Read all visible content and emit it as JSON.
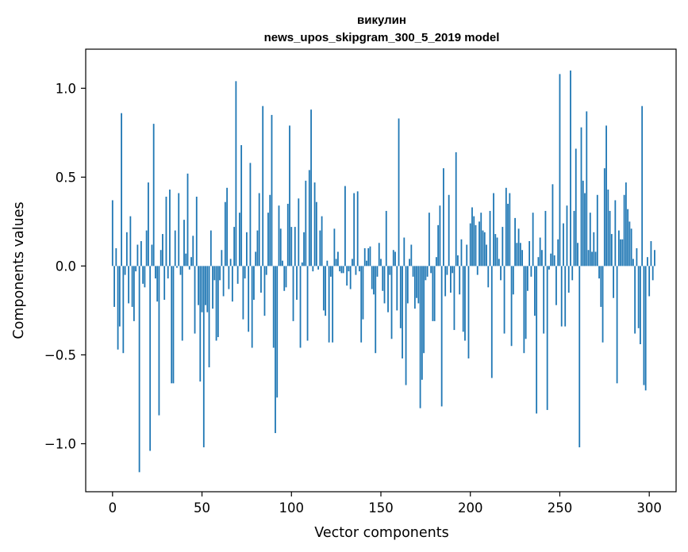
{
  "chart_data": {
    "type": "bar",
    "title": "викулин",
    "subtitle": "news_upos_skipgram_300_5_2019 model",
    "xlabel": "Vector components",
    "ylabel": "Components values",
    "xlim": [
      -15,
      315
    ],
    "ylim": [
      -1.27,
      1.22
    ],
    "xticks": [
      0,
      50,
      100,
      150,
      200,
      250,
      300
    ],
    "xtick_labels": [
      "0",
      "50",
      "100",
      "150",
      "200",
      "250",
      "300"
    ],
    "yticks": [
      -1.0,
      -0.5,
      0.0,
      0.5,
      1.0
    ],
    "ytick_labels": [
      "−1.0",
      "−0.5",
      "0.0",
      "0.5",
      "1.0"
    ],
    "bar_color": "#1f77b4",
    "grid": false,
    "legend": "none",
    "values": [
      0.37,
      -0.23,
      0.1,
      -0.47,
      -0.34,
      0.86,
      -0.49,
      -0.05,
      0.19,
      -0.21,
      0.28,
      -0.23,
      -0.31,
      -0.03,
      0.12,
      -1.16,
      0.14,
      -0.1,
      -0.12,
      0.2,
      0.47,
      -1.04,
      0.12,
      0.8,
      -0.07,
      -0.2,
      -0.84,
      0.09,
      0.18,
      -0.19,
      0.39,
      -0.07,
      0.43,
      -0.66,
      -0.66,
      0.2,
      -0.01,
      0.41,
      -0.05,
      -0.42,
      0.26,
      0.07,
      0.52,
      -0.02,
      0.05,
      0.17,
      -0.38,
      0.39,
      -0.22,
      -0.65,
      -0.26,
      -1.02,
      -0.22,
      -0.26,
      -0.57,
      0.2,
      -0.24,
      -0.08,
      -0.42,
      -0.4,
      -0.08,
      0.09,
      -0.17,
      0.36,
      0.44,
      -0.13,
      0.04,
      -0.2,
      0.22,
      1.04,
      -0.1,
      0.3,
      0.68,
      -0.3,
      -0.07,
      0.19,
      -0.37,
      0.58,
      -0.46,
      -0.19,
      0.08,
      0.2,
      0.41,
      -0.15,
      0.9,
      -0.28,
      -0.05,
      0.3,
      0.4,
      0.85,
      -0.46,
      -0.94,
      -0.74,
      0.34,
      0.21,
      0.03,
      -0.14,
      -0.12,
      0.35,
      0.79,
      0.22,
      -0.31,
      0.22,
      -0.19,
      0.38,
      -0.46,
      0.02,
      0.19,
      0.48,
      -0.42,
      0.54,
      0.88,
      -0.03,
      0.47,
      0.36,
      -0.02,
      0.2,
      0.28,
      -0.25,
      -0.28,
      0.03,
      -0.43,
      -0.06,
      -0.43,
      0.21,
      0.04,
      0.08,
      -0.03,
      -0.04,
      -0.04,
      0.45,
      -0.11,
      -0.03,
      -0.13,
      0.04,
      0.41,
      -0.05,
      0.42,
      -0.03,
      -0.43,
      -0.3,
      0.1,
      0.03,
      0.1,
      0.11,
      -0.13,
      -0.16,
      -0.49,
      -0.06,
      0.13,
      0.04,
      -0.14,
      -0.21,
      0.31,
      -0.26,
      -0.05,
      -0.41,
      0.09,
      0.08,
      -0.25,
      0.83,
      -0.35,
      -0.52,
      0.16,
      -0.67,
      -0.21,
      0.04,
      0.12,
      -0.06,
      -0.24,
      -0.18,
      -0.21,
      -0.8,
      -0.64,
      -0.49,
      -0.08,
      -0.06,
      0.3,
      -0.04,
      -0.31,
      -0.31,
      0.05,
      0.23,
      0.34,
      -0.79,
      0.55,
      -0.17,
      -0.05,
      0.4,
      -0.15,
      -0.04,
      -0.36,
      0.64,
      0.06,
      -0.16,
      0.15,
      -0.37,
      -0.42,
      0.12,
      -0.52,
      0.24,
      0.33,
      0.28,
      0.23,
      -0.05,
      0.25,
      0.3,
      0.2,
      0.19,
      0.12,
      -0.12,
      0.31,
      -0.63,
      0.41,
      0.18,
      0.16,
      0.04,
      -0.08,
      0.22,
      -0.38,
      0.44,
      0.35,
      0.41,
      -0.45,
      -0.16,
      0.27,
      0.13,
      0.21,
      0.13,
      0.09,
      -0.49,
      -0.41,
      -0.14,
      0.14,
      -0.06,
      0.3,
      -0.28,
      -0.83,
      0.05,
      0.16,
      0.09,
      -0.38,
      0.31,
      -0.81,
      -0.02,
      0.07,
      0.46,
      0.06,
      -0.22,
      0.15,
      1.08,
      -0.34,
      0.24,
      -0.34,
      0.34,
      -0.15,
      1.1,
      -0.08,
      0.31,
      0.66,
      0.13,
      -1.02,
      0.78,
      0.48,
      0.41,
      0.87,
      0.09,
      0.3,
      0.08,
      0.19,
      0.08,
      0.4,
      -0.07,
      -0.23,
      -0.43,
      0.55,
      0.79,
      0.43,
      0.31,
      0.18,
      -0.18,
      0.37,
      -0.66,
      0.2,
      0.15,
      0.15,
      0.4,
      0.47,
      0.32,
      0.25,
      0.21,
      0.04,
      -0.38,
      0.1,
      -0.35,
      -0.44,
      0.9,
      -0.67,
      -0.7,
      0.05,
      -0.17,
      0.14,
      -0.08,
      0.09
    ]
  }
}
